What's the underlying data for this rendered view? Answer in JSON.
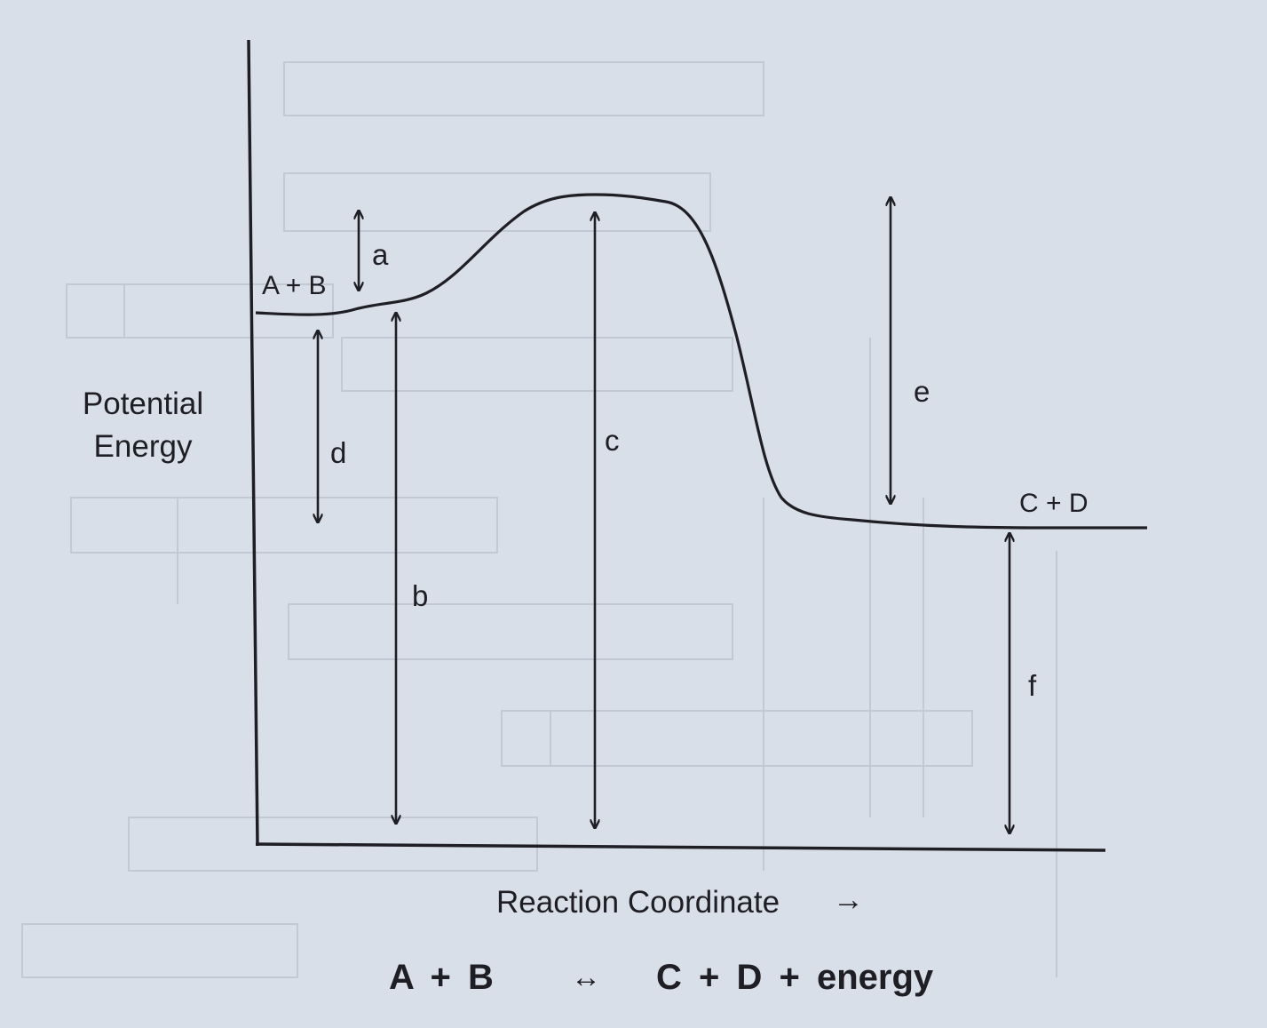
{
  "diagram": {
    "y_axis_label_line1": "Potential",
    "y_axis_label_line2": "Energy",
    "x_axis_label": "Reaction Coordinate",
    "x_axis_arrow": "→",
    "reactants_label": "A + B",
    "products_label": "C + D",
    "arrows": {
      "a": "a",
      "b": "b",
      "c": "c",
      "d": "d",
      "e": "e",
      "f": "f"
    },
    "equation": {
      "left": "A + B",
      "symbol": "↔",
      "right": "C + D + energy"
    },
    "colors": {
      "paper": "#d9dfe8",
      "ink": "#1e1e24"
    }
  }
}
